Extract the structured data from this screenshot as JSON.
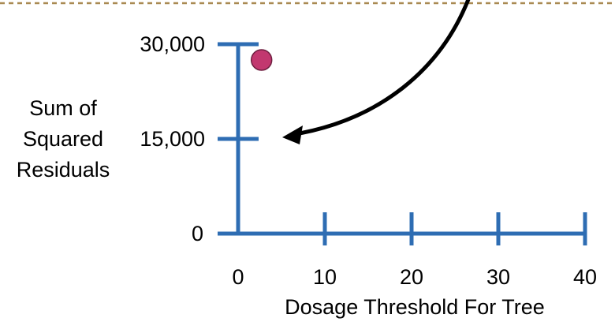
{
  "chart_data": {
    "type": "scatter",
    "xlabel": "Dosage Threshold For Tree",
    "ylabel_lines": [
      "Sum of",
      "Squared",
      "Residuals"
    ],
    "x_ticks": [
      0,
      10,
      20,
      30,
      40
    ],
    "x_tick_labels": [
      "0",
      "10",
      "20",
      "30",
      "40"
    ],
    "y_ticks": [
      0,
      15000,
      30000
    ],
    "y_tick_labels": [
      "0",
      "15,000",
      "30,000"
    ],
    "xlim": [
      0,
      40
    ],
    "ylim": [
      0,
      30000
    ],
    "grid": false,
    "points": [
      {
        "x": 2.7,
        "y": 27500
      }
    ],
    "annotation": {
      "type": "arrow",
      "target_y": 15000
    }
  },
  "colors": {
    "axis": "#2e6db3",
    "point_fill": "#c2386f",
    "point_stroke": "#6e1f40",
    "arrow": "#000000",
    "dashed_rule": "#a98a52"
  }
}
